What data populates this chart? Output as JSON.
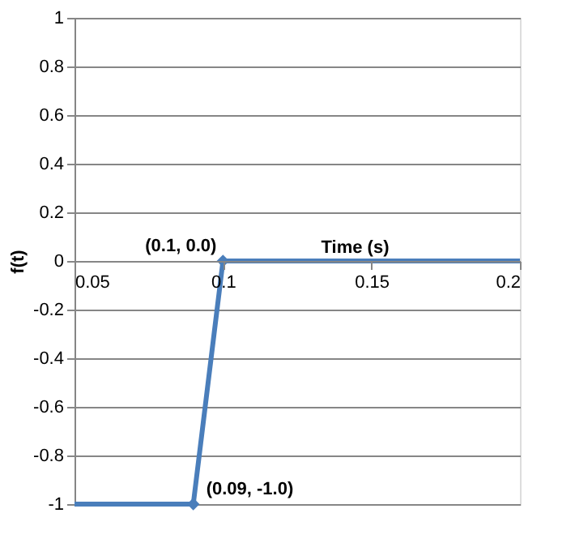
{
  "chart_data": {
    "type": "line",
    "xlabel": "Time (s)",
    "ylabel": "f(t)",
    "series": [
      {
        "color": "#4a7ebb",
        "x": [
          0.05,
          0.09,
          0.1,
          0.2
        ],
        "values": [
          -1,
          -1,
          0,
          0
        ],
        "marker": "none"
      },
      {
        "type": "scatter",
        "color": "#4a7ebb",
        "x": [
          0.09,
          0.1
        ],
        "values": [
          -1,
          0
        ],
        "marker": "diamond"
      }
    ],
    "annotations": [
      {
        "text": "(0.1, 0.0)",
        "x": 0.1,
        "y": 0
      },
      {
        "text": "(0.09, -1.0)",
        "x": 0.09,
        "y": -1
      }
    ],
    "xlim": [
      0.05,
      0.2
    ],
    "xticks": [
      0.05,
      0.1,
      0.15,
      0.2
    ],
    "ylim": [
      -1,
      1
    ],
    "yticks": [
      -1,
      -0.8,
      -0.6,
      -0.4,
      -0.2,
      0,
      0.2,
      0.4,
      0.6,
      0.8,
      1
    ],
    "grid": "y"
  }
}
